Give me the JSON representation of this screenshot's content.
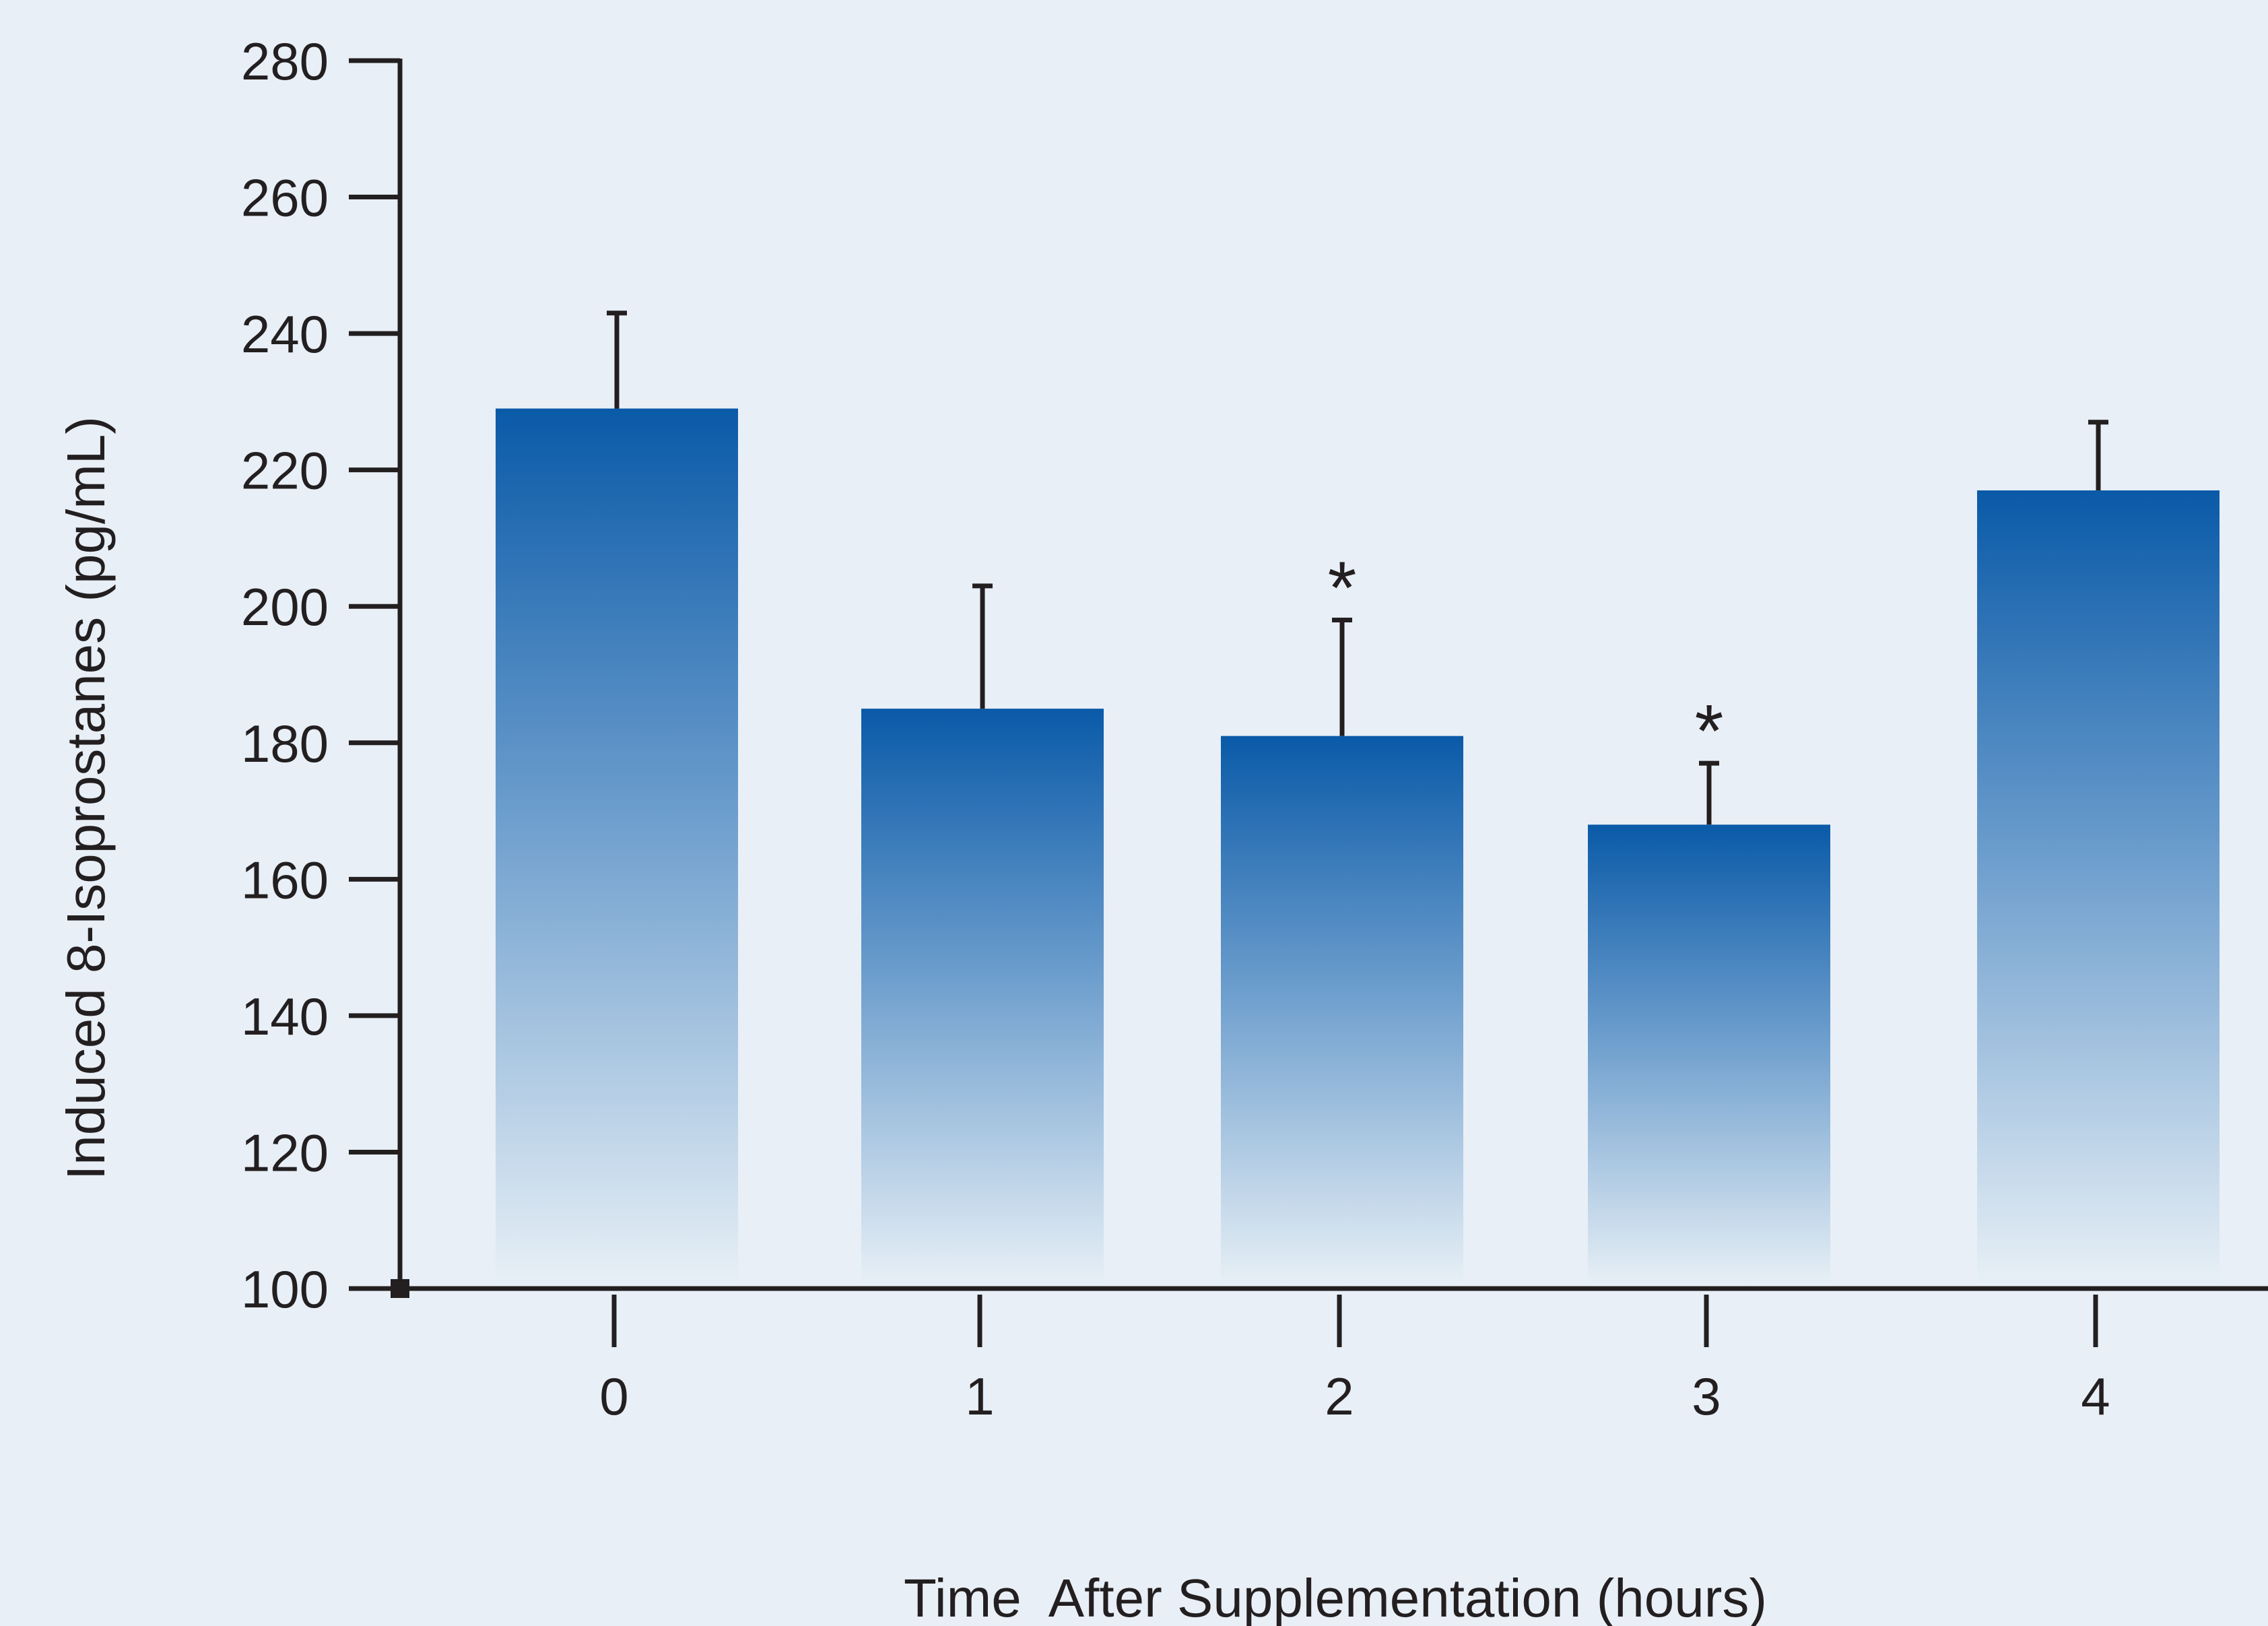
{
  "chart_data": {
    "type": "bar",
    "title": "",
    "xlabel": "Time  After Supplementation (hours)",
    "ylabel": "Induced 8-Isoprostanes (pg/mL)",
    "categories": [
      "0",
      "1",
      "2",
      "3",
      "4"
    ],
    "values": [
      229,
      185,
      181,
      168,
      217
    ],
    "error_upper": [
      243,
      203,
      198,
      177,
      227
    ],
    "significance": [
      "",
      "",
      "*",
      "*",
      ""
    ],
    "ylim": [
      100,
      280
    ],
    "yticks": [
      100,
      120,
      140,
      160,
      180,
      200,
      220,
      240,
      260,
      280
    ],
    "grid": false,
    "legend": "none",
    "colors": {
      "bar_top": "#0a5aa8",
      "bar_bottom": "#e8f0f6",
      "axis": "#231f20",
      "background": "#e8eff6"
    }
  }
}
